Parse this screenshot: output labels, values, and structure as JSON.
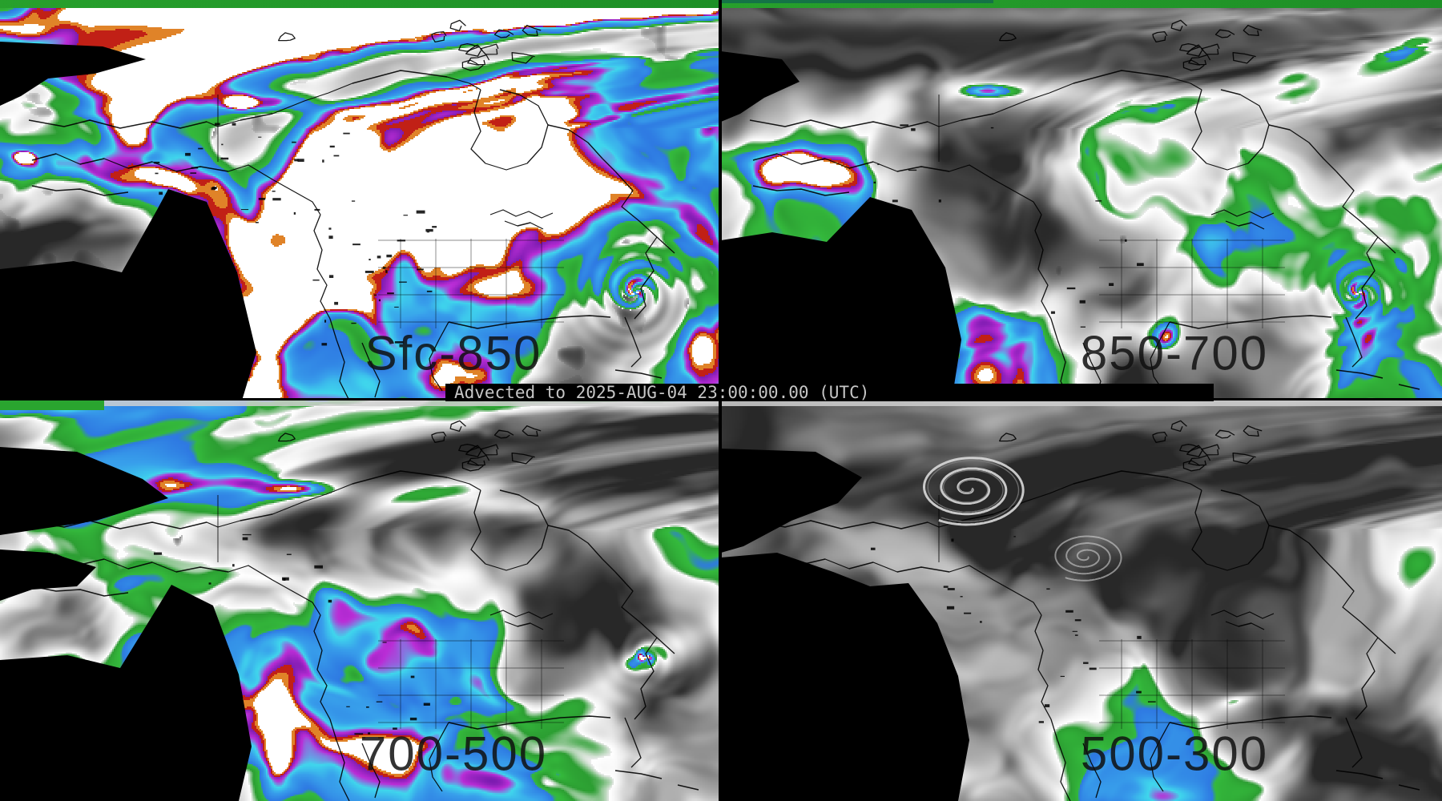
{
  "product": {
    "caption": "Advected to 2025-AUG-04 23:00:00.00 (UTC)"
  },
  "panels": [
    {
      "label": "Sfc-850"
    },
    {
      "label": "850-700"
    },
    {
      "label": "700-500"
    },
    {
      "label": "500-300"
    }
  ],
  "palette": {
    "background": "#000000",
    "dry_gray": "#6e6e6e",
    "moist_white": "#f2f2f2",
    "green": "#2aa232",
    "blue": "#2e79e2",
    "cyan": "#3fd6ec",
    "magenta": "#c32fd8",
    "purple": "#7c1bb0",
    "red": "#c1221a",
    "orange": "#e08328",
    "caption_fg": "#c6c6c6",
    "label_fg": "#101010"
  }
}
